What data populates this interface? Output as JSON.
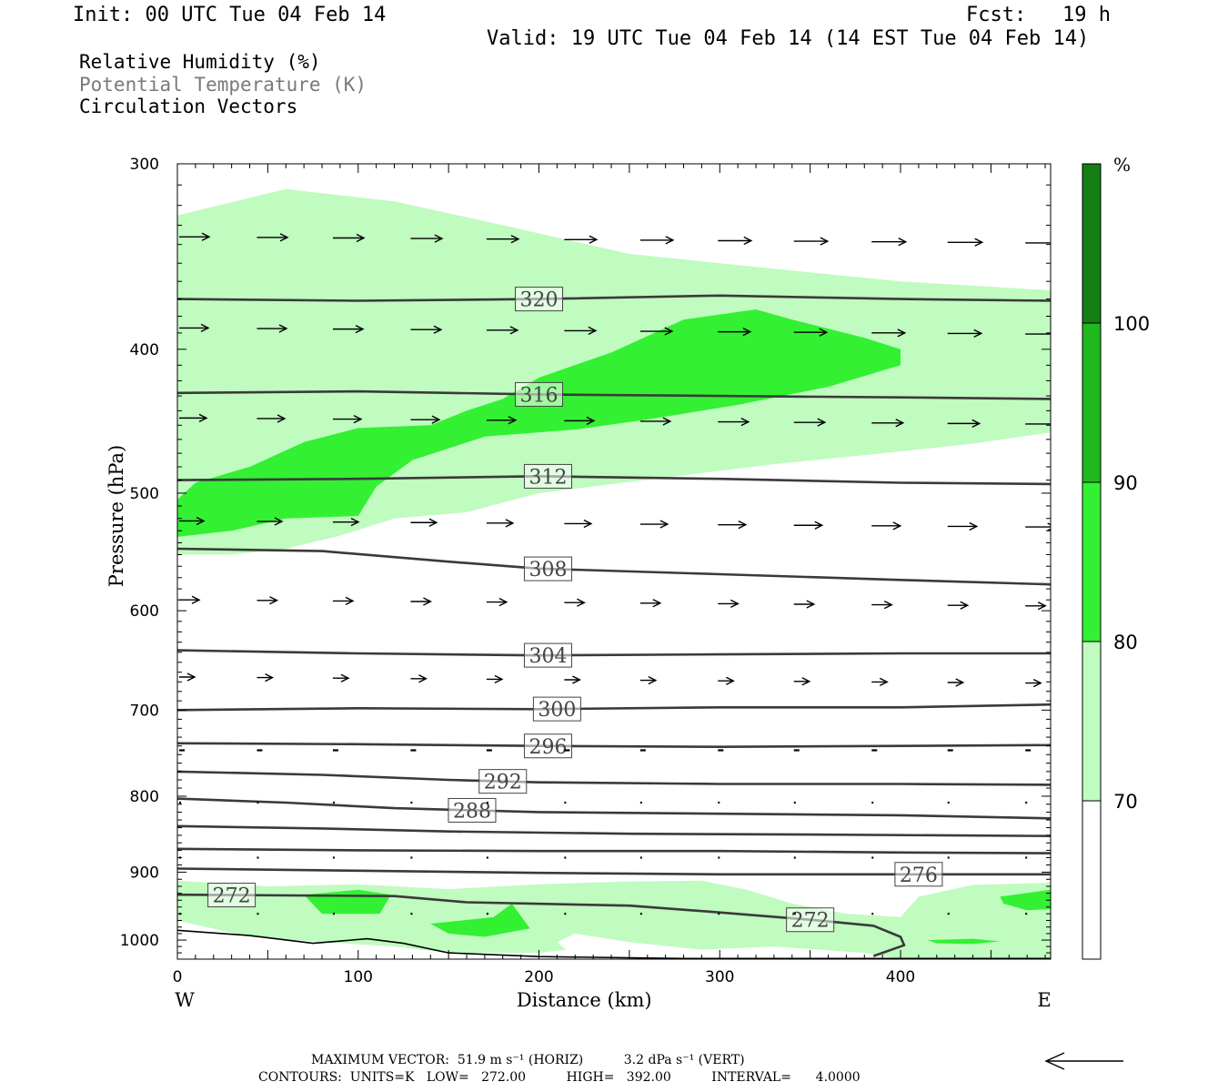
{
  "header": {
    "init": "Init: 00 UTC Tue 04 Feb 14",
    "fcst": "Fcst:   19 h",
    "valid": "Valid: 19 UTC Tue 04 Feb 14 (14 EST Tue 04 Feb 14)"
  },
  "legend": {
    "relative_humidity": "Relative Humidity (%)",
    "potential_temperature": "Potential Temperature (K)",
    "circulation_vectors": "Circulation Vectors"
  },
  "colors": {
    "rh_70_80": "#c0fbc0",
    "rh_80_90": "#33f033",
    "rh_90_100": "#1fb81f",
    "rh_100_plus": "#147d14",
    "contour": "#3a3a3a",
    "surface": "#000000"
  },
  "chart_data": {
    "type": "cross-section",
    "xlabel": "Distance (km)",
    "ylabel": "Pressure (hPa)",
    "x_ticks": [
      0,
      100,
      200,
      300,
      400
    ],
    "y_ticks": [
      300,
      400,
      500,
      600,
      700,
      800,
      900,
      1000
    ],
    "xlim": [
      0,
      483
    ],
    "ylim": [
      300,
      1030
    ],
    "y_scale": "log",
    "x_end_labels": {
      "left": "W",
      "right": "E"
    },
    "colorbar": {
      "unit": "%",
      "levels": [
        70,
        80,
        90,
        100
      ]
    },
    "theta_contours": [
      {
        "value": 320,
        "label": "320",
        "label_x": 200,
        "points": [
          [
            0,
            370
          ],
          [
            100,
            371
          ],
          [
            200,
            370
          ],
          [
            300,
            368
          ],
          [
            400,
            370
          ],
          [
            483,
            371
          ]
        ]
      },
      {
        "value": 316,
        "label": "316",
        "label_x": 200,
        "points": [
          [
            0,
            428
          ],
          [
            100,
            427
          ],
          [
            200,
            429
          ],
          [
            300,
            430
          ],
          [
            400,
            431
          ],
          [
            483,
            432
          ]
        ]
      },
      {
        "value": 312,
        "label": "312",
        "label_x": 205,
        "points": [
          [
            0,
            490
          ],
          [
            100,
            489
          ],
          [
            200,
            487
          ],
          [
            300,
            489
          ],
          [
            400,
            492
          ],
          [
            483,
            493
          ]
        ]
      },
      {
        "value": 308,
        "label": "308",
        "label_x": 205,
        "points": [
          [
            0,
            545
          ],
          [
            80,
            547
          ],
          [
            150,
            556
          ],
          [
            200,
            562
          ],
          [
            300,
            567
          ],
          [
            400,
            572
          ],
          [
            483,
            576
          ]
        ]
      },
      {
        "value": 304,
        "label": "304",
        "label_x": 205,
        "points": [
          [
            0,
            638
          ],
          [
            100,
            641
          ],
          [
            200,
            643
          ],
          [
            300,
            642
          ],
          [
            400,
            641
          ],
          [
            483,
            641
          ]
        ]
      },
      {
        "value": 300,
        "label": "300",
        "label_x": 210,
        "points": [
          [
            0,
            700
          ],
          [
            100,
            698
          ],
          [
            200,
            699
          ],
          [
            300,
            697
          ],
          [
            400,
            697
          ],
          [
            483,
            694
          ]
        ]
      },
      {
        "value": 296,
        "label": "296",
        "label_x": 205,
        "points": [
          [
            0,
            737
          ],
          [
            100,
            738
          ],
          [
            200,
            740
          ],
          [
            300,
            741
          ],
          [
            400,
            740
          ],
          [
            483,
            739
          ]
        ]
      },
      {
        "value": 292,
        "label": "292",
        "label_x": 180,
        "points": [
          [
            0,
            770
          ],
          [
            80,
            774
          ],
          [
            150,
            780
          ],
          [
            200,
            783
          ],
          [
            300,
            785
          ],
          [
            400,
            785
          ],
          [
            483,
            786
          ]
        ]
      },
      {
        "value": 288,
        "label": "288",
        "label_x": 163,
        "points": [
          [
            0,
            803
          ],
          [
            60,
            808
          ],
          [
            120,
            815
          ],
          [
            200,
            820
          ],
          [
            300,
            822
          ],
          [
            400,
            824
          ],
          [
            483,
            828
          ]
        ]
      },
      {
        "value": 284,
        "label": "",
        "label_x": 0,
        "points": [
          [
            0,
            838
          ],
          [
            80,
            841
          ],
          [
            150,
            845
          ],
          [
            250,
            848
          ],
          [
            350,
            849
          ],
          [
            483,
            851
          ]
        ]
      },
      {
        "value": 280,
        "label": "",
        "label_x": 0,
        "points": [
          [
            0,
            868
          ],
          [
            100,
            870
          ],
          [
            200,
            871
          ],
          [
            300,
            871
          ],
          [
            400,
            873
          ],
          [
            483,
            874
          ]
        ]
      },
      {
        "value": 276,
        "label": "276",
        "label_x": 410,
        "points": [
          [
            0,
            895
          ],
          [
            100,
            898
          ],
          [
            200,
            901
          ],
          [
            300,
            903
          ],
          [
            400,
            903
          ],
          [
            483,
            903
          ]
        ]
      },
      {
        "value": 272,
        "label": "272",
        "label_x": 30,
        "label2": "272",
        "label2_x": 350,
        "points": [
          [
            0,
            932
          ],
          [
            120,
            934
          ],
          [
            160,
            943
          ],
          [
            250,
            948
          ],
          [
            300,
            958
          ],
          [
            350,
            969
          ],
          [
            385,
            978
          ],
          [
            400,
            995
          ],
          [
            402,
            1008
          ],
          [
            385,
            1025
          ]
        ]
      }
    ],
    "surface": [
      [
        0,
        985
      ],
      [
        40,
        993
      ],
      [
        75,
        1005
      ],
      [
        105,
        998
      ],
      [
        125,
        1005
      ],
      [
        150,
        1020
      ],
      [
        200,
        1026
      ],
      [
        280,
        1029
      ],
      [
        400,
        1029
      ],
      [
        483,
        1029
      ]
    ],
    "rh_regions": [
      {
        "level": 70,
        "points": [
          [
            0,
            325
          ],
          [
            60,
            312
          ],
          [
            120,
            318
          ],
          [
            180,
            330
          ],
          [
            250,
            345
          ],
          [
            320,
            352
          ],
          [
            400,
            360
          ],
          [
            483,
            365
          ],
          [
            483,
            455
          ],
          [
            440,
            463
          ],
          [
            390,
            470
          ],
          [
            330,
            478
          ],
          [
            270,
            488
          ],
          [
            200,
            500
          ],
          [
            160,
            515
          ],
          [
            120,
            520
          ],
          [
            90,
            534
          ],
          [
            60,
            545
          ],
          [
            30,
            550
          ],
          [
            0,
            550
          ]
        ]
      },
      {
        "level": 80,
        "points": [
          [
            0,
            505
          ],
          [
            10,
            492
          ],
          [
            40,
            480
          ],
          [
            70,
            462
          ],
          [
            100,
            452
          ],
          [
            140,
            450
          ],
          [
            160,
            440
          ],
          [
            180,
            432
          ],
          [
            200,
            418
          ],
          [
            240,
            402
          ],
          [
            280,
            382
          ],
          [
            320,
            376
          ],
          [
            340,
            382
          ],
          [
            380,
            393
          ],
          [
            400,
            400
          ],
          [
            400,
            410
          ],
          [
            360,
            424
          ],
          [
            310,
            436
          ],
          [
            260,
            446
          ],
          [
            220,
            453
          ],
          [
            170,
            458
          ],
          [
            130,
            475
          ],
          [
            110,
            495
          ],
          [
            100,
            518
          ],
          [
            60,
            520
          ],
          [
            30,
            530
          ],
          [
            0,
            535
          ]
        ]
      },
      {
        "level": 70,
        "points": [
          [
            0,
            912
          ],
          [
            50,
            920
          ],
          [
            100,
            917
          ],
          [
            150,
            924
          ],
          [
            200,
            917
          ],
          [
            250,
            913
          ],
          [
            290,
            912
          ],
          [
            315,
            925
          ],
          [
            340,
            945
          ],
          [
            370,
            960
          ],
          [
            400,
            965
          ],
          [
            410,
            935
          ],
          [
            440,
            918
          ],
          [
            483,
            915
          ],
          [
            483,
            1030
          ],
          [
            400,
            1030
          ],
          [
            380,
            1020
          ],
          [
            330,
            1010
          ],
          [
            290,
            1015
          ],
          [
            250,
            1003
          ],
          [
            220,
            990
          ],
          [
            210,
            1003
          ],
          [
            215,
            1015
          ],
          [
            200,
            1020
          ],
          [
            150,
            1020
          ],
          [
            120,
            1010
          ],
          [
            80,
            1003
          ],
          [
            40,
            995
          ],
          [
            0,
            970
          ]
        ]
      },
      {
        "level": 80,
        "points": [
          [
            70,
            932
          ],
          [
            100,
            925
          ],
          [
            118,
            932
          ],
          [
            112,
            960
          ],
          [
            80,
            960
          ]
        ]
      },
      {
        "level": 80,
        "points": [
          [
            140,
            975
          ],
          [
            175,
            965
          ],
          [
            185,
            945
          ],
          [
            195,
            982
          ],
          [
            170,
            995
          ],
          [
            150,
            990
          ]
        ]
      },
      {
        "level": 80,
        "points": [
          [
            455,
            935
          ],
          [
            483,
            925
          ],
          [
            483,
            953
          ],
          [
            470,
            955
          ],
          [
            457,
            945
          ]
        ]
      },
      {
        "level": 80,
        "points": [
          [
            415,
            1000
          ],
          [
            440,
            998
          ],
          [
            455,
            1002
          ],
          [
            440,
            1006
          ],
          [
            420,
            1005
          ]
        ]
      }
    ],
    "vector_rows": [
      {
        "pressure": 336,
        "dx": 33
      },
      {
        "pressure": 387,
        "dx": 32
      },
      {
        "pressure": 445,
        "dx": 30
      },
      {
        "pressure": 522,
        "dx": 27
      },
      {
        "pressure": 590,
        "dx": 22
      },
      {
        "pressure": 665,
        "dx": 17
      },
      {
        "pressure": 745,
        "dx": 6
      },
      {
        "pressure": 808,
        "dx": 2
      },
      {
        "pressure": 880,
        "dx": 1
      },
      {
        "pressure": 960,
        "dx": 1
      }
    ],
    "footer": {
      "line1": "MAXIMUM VECTOR:  51.9 m s⁻¹ (HORIZ)          3.2 dPa s⁻¹ (VERT)",
      "line2": "CONTOURS:  UNITS=K   LOW=   272.00          HIGH=   392.00          INTERVAL=      4.0000"
    }
  }
}
